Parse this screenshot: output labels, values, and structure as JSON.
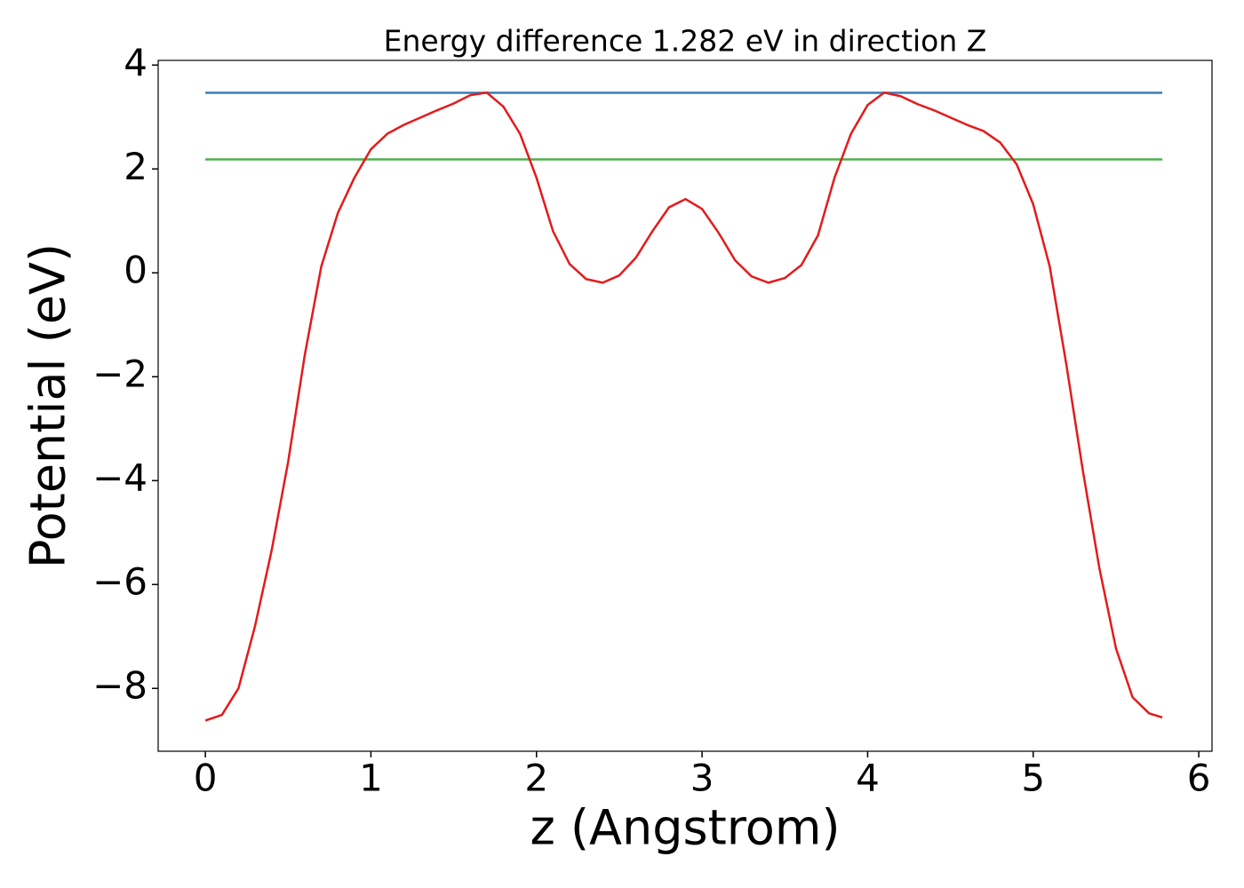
{
  "chart_data": {
    "type": "line",
    "title": "Energy difference 1.282 eV in direction Z",
    "xlabel": "z (Angstrom)",
    "ylabel": "Potential (eV)",
    "xlim": [
      -0.285,
      6.08
    ],
    "ylim": [
      -9.21,
      4.09
    ],
    "xticks": [
      0,
      1,
      2,
      3,
      4,
      5,
      6
    ],
    "yticks": [
      {
        "value": -8,
        "label": "−8"
      },
      {
        "value": -6,
        "label": "−6"
      },
      {
        "value": -4,
        "label": "−4"
      },
      {
        "value": -2,
        "label": "−2"
      },
      0,
      2,
      4
    ],
    "series": [
      {
        "color": "#e41a1c",
        "x": [
          0,
          0.1,
          0.2,
          0.3,
          0.4,
          0.5,
          0.6,
          0.7,
          0.8,
          0.9,
          1.0,
          1.1,
          1.2,
          1.3,
          1.4,
          1.5,
          1.6,
          1.7,
          1.8,
          1.9,
          2.0,
          2.1,
          2.2,
          2.3,
          2.4,
          2.5,
          2.6,
          2.7,
          2.8,
          2.9,
          3.0,
          3.1,
          3.2,
          3.3,
          3.4,
          3.5,
          3.6,
          3.7,
          3.8,
          3.9,
          4.0,
          4.1,
          4.2,
          4.3,
          4.4,
          4.5,
          4.6,
          4.7,
          4.8,
          4.9,
          5.0,
          5.1,
          5.2,
          5.3,
          5.4,
          5.5,
          5.6,
          5.7,
          5.78
        ],
        "values": [
          -8.62,
          -8.51,
          -8.0,
          -6.8,
          -5.35,
          -3.64,
          -1.59,
          0.12,
          1.15,
          1.83,
          2.38,
          2.68,
          2.85,
          2.99,
          3.13,
          3.26,
          3.42,
          3.47,
          3.2,
          2.68,
          1.83,
          0.8,
          0.17,
          -0.12,
          -0.19,
          -0.05,
          0.29,
          0.8,
          1.26,
          1.42,
          1.23,
          0.77,
          0.24,
          -0.07,
          -0.19,
          -0.1,
          0.15,
          0.72,
          1.83,
          2.68,
          3.23,
          3.47,
          3.4,
          3.25,
          3.13,
          2.99,
          2.85,
          2.73,
          2.51,
          2.09,
          1.32,
          0.12,
          -1.76,
          -3.81,
          -5.69,
          -7.23,
          -8.17,
          -8.48,
          -8.56
        ]
      },
      {
        "color": "#377eb8",
        "x": [
          0,
          5.78
        ],
        "values": [
          3.465,
          3.465
        ]
      },
      {
        "color": "#4daf4a",
        "x": [
          0,
          5.78
        ],
        "values": [
          2.183,
          2.183
        ]
      }
    ]
  }
}
